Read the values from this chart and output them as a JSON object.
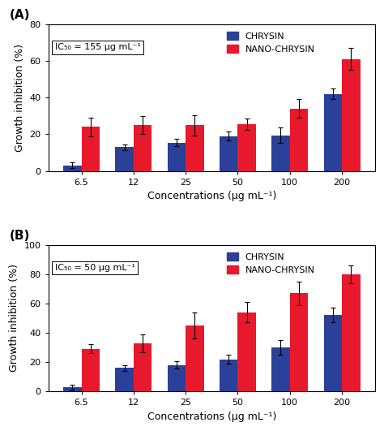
{
  "categories": [
    "6.5",
    "12",
    "25",
    "50",
    "100",
    "200"
  ],
  "panel_A": {
    "label": "(A)",
    "ic50_text": "IC₅₀ = 155 μg mL⁻¹",
    "ylim": [
      0,
      80
    ],
    "yticks": [
      0,
      20,
      40,
      60,
      80
    ],
    "chrysin_values": [
      3,
      13,
      15.5,
      19,
      19.5,
      42
    ],
    "nano_chrysin_values": [
      24,
      25,
      25,
      25.5,
      34,
      61
    ],
    "chrysin_errors": [
      1.5,
      1.5,
      2,
      2.5,
      4,
      3
    ],
    "nano_chrysin_errors": [
      5,
      5,
      5.5,
      3,
      5,
      6
    ]
  },
  "panel_B": {
    "label": "(B)",
    "ic50_text": "IC₅₀ = 50 μg mL⁻¹",
    "ylim": [
      0,
      100
    ],
    "yticks": [
      0,
      20,
      40,
      60,
      80,
      100
    ],
    "chrysin_values": [
      3,
      16,
      18,
      22,
      30,
      52
    ],
    "nano_chrysin_values": [
      29,
      33,
      45,
      54,
      67,
      80
    ],
    "chrysin_errors": [
      1.5,
      2,
      2.5,
      3,
      5,
      5
    ],
    "nano_chrysin_errors": [
      3,
      6,
      9,
      7,
      8,
      6
    ]
  },
  "bar_width": 0.35,
  "chrysin_color": "#2a4099",
  "nano_chrysin_color": "#e8192c",
  "ylabel": "Growth inhibition (%)",
  "xlabel": "Concentrations (μg mL⁻¹)",
  "legend_chrysin": "CHRYSIN",
  "legend_nano": "NANO-CHRYSIN",
  "background_color": "#ffffff",
  "fontsize_label": 9,
  "fontsize_tick": 8,
  "fontsize_legend": 8,
  "fontsize_ic50": 8,
  "fontsize_panel": 11
}
